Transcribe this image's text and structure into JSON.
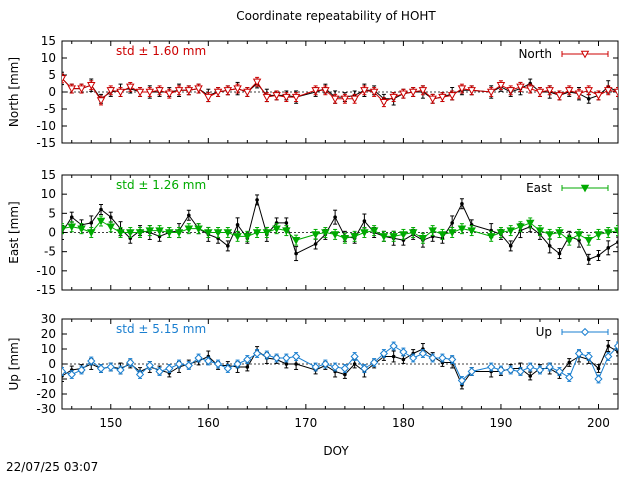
{
  "title": "Coordinate repeatability of HOHT",
  "xlabel": "DOY",
  "timestamp": "22/07/25 03:07",
  "chart_data": {
    "type": "line",
    "x_ticks": [
      150,
      160,
      170,
      180,
      190,
      200
    ],
    "xlim": [
      145,
      202
    ],
    "panels": [
      {
        "name": "north",
        "ylabel": "North [mm]",
        "legend": "North",
        "std_text": "std ± 1.60 mm",
        "color": "#cc0000",
        "marker": "triangle-down-open",
        "ylim": [
          -15,
          15
        ],
        "yticks": [
          -15,
          -10,
          -5,
          0,
          5,
          10,
          15
        ],
        "series_x": [
          145,
          146,
          147,
          148,
          149,
          150,
          151,
          152,
          153,
          154,
          155,
          156,
          157,
          158,
          159,
          160,
          161,
          162,
          163,
          164,
          165,
          166,
          167,
          168,
          169,
          171,
          172,
          173,
          174,
          175,
          176,
          177,
          178,
          179,
          180,
          181,
          182,
          183,
          184,
          185,
          186,
          187,
          189,
          190,
          191,
          192,
          193,
          194,
          195,
          196,
          197,
          198,
          199,
          200,
          201,
          202
        ],
        "series_y": [
          4,
          1,
          1,
          2,
          -2.5,
          0.5,
          0,
          1.5,
          0,
          0,
          0.5,
          -0.5,
          0.5,
          0.5,
          1,
          -1.5,
          0,
          0.5,
          1,
          0,
          3,
          -1.5,
          -1,
          -1.5,
          -1.5,
          0.5,
          0.5,
          -2,
          -2,
          -2,
          0.5,
          0,
          -3,
          -1.5,
          -0.5,
          0,
          0.5,
          -2,
          -1.5,
          -1,
          1,
          0.5,
          0,
          2,
          0.5,
          1.5,
          1,
          0,
          0.5,
          -1,
          0.5,
          -0.5,
          0.5,
          -1,
          0.5,
          0
        ],
        "black_y": [
          4,
          1,
          1,
          2,
          -2,
          0,
          0.5,
          1,
          0,
          0,
          0,
          0,
          0.5,
          0.5,
          1,
          -1,
          0,
          0.5,
          1,
          0,
          2.5,
          -1,
          -1,
          -1,
          -1.5,
          0,
          1,
          -1.5,
          -1.5,
          -1,
          0.5,
          0.5,
          -2,
          -2,
          -0.5,
          0,
          0,
          -2,
          -1.5,
          -0.5,
          0.5,
          0.5,
          0,
          1.5,
          0,
          1,
          2.5,
          0,
          0,
          -1,
          0,
          -0.5,
          -2,
          -1,
          1.5,
          0
        ]
      },
      {
        "name": "east",
        "ylabel": "East [mm]",
        "legend": "East",
        "std_text": "std ± 1.26 mm",
        "color": "#00aa00",
        "marker": "triangle-down-filled",
        "ylim": [
          -15,
          15
        ],
        "yticks": [
          -15,
          -10,
          -5,
          0,
          5,
          10,
          15
        ],
        "series_x": [
          145,
          146,
          147,
          148,
          149,
          150,
          151,
          152,
          153,
          154,
          155,
          156,
          157,
          158,
          159,
          160,
          161,
          162,
          163,
          164,
          165,
          166,
          167,
          168,
          169,
          171,
          172,
          173,
          174,
          175,
          176,
          177,
          178,
          179,
          180,
          181,
          182,
          183,
          184,
          185,
          186,
          187,
          189,
          190,
          191,
          192,
          193,
          194,
          195,
          196,
          197,
          198,
          199,
          200,
          201,
          202
        ],
        "series_y": [
          1,
          1.5,
          1,
          0,
          3,
          1.5,
          0,
          0,
          0,
          0.5,
          0.5,
          0,
          0,
          1,
          1,
          0,
          0,
          0,
          -1,
          -1,
          0,
          0,
          1,
          0.5,
          -2,
          -0.5,
          0,
          -0.5,
          -1.5,
          -1,
          0,
          0.5,
          -1,
          -1,
          -0.5,
          0,
          -1.5,
          0.5,
          -0.5,
          0,
          1,
          0.5,
          -1,
          0,
          0.5,
          1.5,
          2.5,
          0.5,
          -0.5,
          0,
          -2,
          -0.5,
          -2,
          -0.5,
          0,
          0.5
        ],
        "black_y": [
          0,
          4,
          2,
          2.5,
          6,
          4,
          1,
          -1.5,
          0.5,
          0,
          -1,
          0,
          0.5,
          4.5,
          1,
          -0.5,
          -1.5,
          -3.5,
          2,
          -1.5,
          8.5,
          -0.5,
          2.5,
          2.5,
          -5.5,
          -3,
          -0.5,
          4,
          -1,
          -1.5,
          3,
          0,
          -1,
          -1.5,
          -2,
          -0.5,
          -2,
          -1,
          -1.5,
          2.5,
          7.5,
          2,
          0.5,
          -0.5,
          -3.5,
          0.5,
          1.5,
          -0.5,
          -3.5,
          -5.5,
          -1,
          -2,
          -7,
          -6,
          -4,
          -2.5
        ]
      },
      {
        "name": "up",
        "ylabel": "Up [mm]",
        "legend": "Up",
        "std_text": "std ± 5.15 mm",
        "color": "#1a7fd0",
        "marker": "diamond-open",
        "ylim": [
          -30,
          30
        ],
        "yticks": [
          -30,
          -20,
          -10,
          0,
          10,
          20,
          30
        ],
        "series_x": [
          145,
          146,
          147,
          148,
          149,
          150,
          151,
          152,
          153,
          154,
          155,
          156,
          157,
          158,
          159,
          160,
          161,
          162,
          163,
          164,
          165,
          166,
          167,
          168,
          169,
          171,
          172,
          173,
          174,
          175,
          176,
          177,
          178,
          179,
          180,
          181,
          182,
          183,
          184,
          185,
          186,
          187,
          189,
          190,
          191,
          192,
          193,
          194,
          195,
          196,
          197,
          198,
          199,
          200,
          201,
          202
        ],
        "series_y": [
          -5,
          -7,
          -4,
          2,
          -3,
          -2,
          -4,
          1,
          -7,
          -1,
          -5,
          -3,
          0,
          -1,
          4,
          2,
          0,
          -3,
          0,
          3,
          7,
          6,
          4,
          4,
          5,
          -2,
          0,
          -2,
          -3,
          5,
          -3,
          1,
          7,
          12,
          8,
          4,
          7,
          4,
          4,
          3,
          -11,
          -5,
          -2,
          -4,
          -4,
          -5,
          -2,
          -4,
          -2,
          -5,
          -9,
          7,
          5,
          -10,
          5,
          12
        ],
        "black_y": [
          -8,
          -4,
          -3,
          0,
          -3,
          -2,
          -3,
          0,
          -5,
          -2,
          -4,
          -6,
          -2,
          0,
          2,
          5,
          -1,
          -1,
          -2,
          -2,
          9,
          4,
          3,
          0,
          0,
          -4,
          -1,
          -5,
          -7,
          0,
          -5,
          0,
          5,
          5,
          3,
          7,
          10,
          5,
          1,
          1,
          -14,
          -5,
          -5,
          -5,
          -3,
          -3,
          -8,
          -3,
          -3,
          -7,
          1,
          5,
          3,
          -3,
          12,
          8
        ]
      }
    ]
  }
}
